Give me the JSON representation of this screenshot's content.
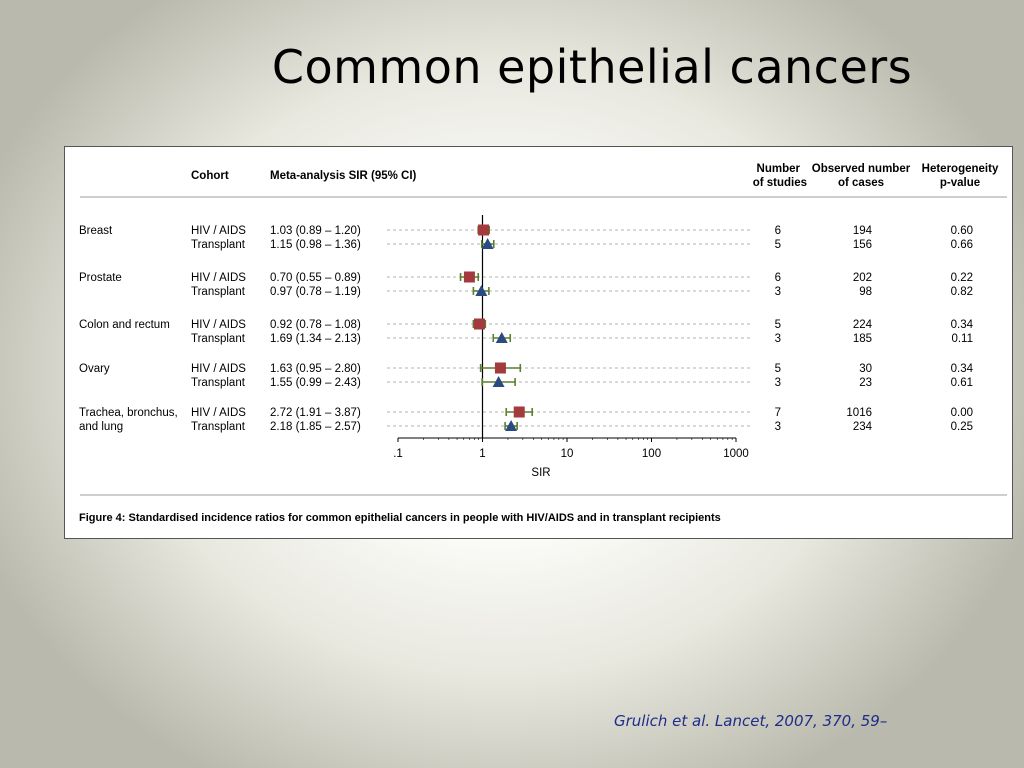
{
  "slide": {
    "title": "Common epithelial cancers",
    "citation": "Grulich et al. Lancet, 2007, 370, 59–"
  },
  "chart_data": {
    "type": "forest",
    "headers": {
      "cohort": "Cohort",
      "meta": "Meta-analysis  SIR (95% CI)",
      "studies": [
        "Number",
        "of studies"
      ],
      "cases": [
        "Observed number",
        "of cases"
      ],
      "hetero": [
        "Heterogeneity",
        "p-value"
      ]
    },
    "xlabel": "SIR",
    "x_scale": "log",
    "xlim": [
      0.1,
      1000
    ],
    "x_ticks": [
      {
        "value": 0.1,
        "label": ".1"
      },
      {
        "value": 1,
        "label": "1"
      },
      {
        "value": 10,
        "label": "10"
      },
      {
        "value": 100,
        "label": "100"
      },
      {
        "value": 1000,
        "label": "1000"
      }
    ],
    "reference_line": 1,
    "series": [
      {
        "name": "HIV / AIDS",
        "marker": "square",
        "color": "#a33a3d"
      },
      {
        "name": "Transplant",
        "marker": "triangle",
        "color": "#2a4a82"
      }
    ],
    "ci_color": "#5b7f2e",
    "rows": [
      {
        "cancer": [
          "Breast"
        ],
        "cohort": "HIV / AIDS",
        "ci_text": "1.03 (0.89 – 1.20)",
        "sir": 1.03,
        "low": 0.89,
        "high": 1.2,
        "studies": "6",
        "cases": "194",
        "p": "0.60"
      },
      {
        "cancer": [],
        "cohort": "Transplant",
        "ci_text": "1.15 (0.98 – 1.36)",
        "sir": 1.15,
        "low": 0.98,
        "high": 1.36,
        "studies": "5",
        "cases": "156",
        "p": "0.66"
      },
      {
        "cancer": [
          "Prostate"
        ],
        "cohort": "HIV / AIDS",
        "ci_text": "0.70 (0.55 – 0.89)",
        "sir": 0.7,
        "low": 0.55,
        "high": 0.89,
        "studies": "6",
        "cases": "202",
        "p": "0.22"
      },
      {
        "cancer": [],
        "cohort": "Transplant",
        "ci_text": "0.97 (0.78 – 1.19)",
        "sir": 0.97,
        "low": 0.78,
        "high": 1.19,
        "studies": "3",
        "cases": "98",
        "p": "0.82"
      },
      {
        "cancer": [
          "Colon and rectum"
        ],
        "cohort": "HIV / AIDS",
        "ci_text": "0.92 (0.78 – 1.08)",
        "sir": 0.92,
        "low": 0.78,
        "high": 1.08,
        "studies": "5",
        "cases": "224",
        "p": "0.34"
      },
      {
        "cancer": [],
        "cohort": "Transplant",
        "ci_text": "1.69 (1.34 – 2.13)",
        "sir": 1.69,
        "low": 1.34,
        "high": 2.13,
        "studies": "3",
        "cases": "185",
        "p": "0.11"
      },
      {
        "cancer": [
          "Ovary"
        ],
        "cohort": "HIV / AIDS",
        "ci_text": "1.63 (0.95 – 2.80)",
        "sir": 1.63,
        "low": 0.95,
        "high": 2.8,
        "studies": "5",
        "cases": "30",
        "p": "0.34"
      },
      {
        "cancer": [],
        "cohort": "Transplant",
        "ci_text": "1.55 (0.99 – 2.43)",
        "sir": 1.55,
        "low": 0.99,
        "high": 2.43,
        "studies": "3",
        "cases": "23",
        "p": "0.61"
      },
      {
        "cancer": [
          "Trachea, bronchus,",
          "and lung"
        ],
        "cohort": "HIV / AIDS",
        "ci_text": "2.72 (1.91 – 3.87)",
        "sir": 2.72,
        "low": 1.91,
        "high": 3.87,
        "studies": "7",
        "cases": "1016",
        "p": "0.00"
      },
      {
        "cancer": [],
        "cohort": "Transplant",
        "ci_text": "2.18 (1.85 – 2.57)",
        "sir": 2.18,
        "low": 1.85,
        "high": 2.57,
        "studies": "3",
        "cases": "234",
        "p": "0.25"
      }
    ],
    "caption": "Figure 4: Standardised incidence ratios for common epithelial cancers in people with HIV/AIDS and in transplant recipients"
  }
}
